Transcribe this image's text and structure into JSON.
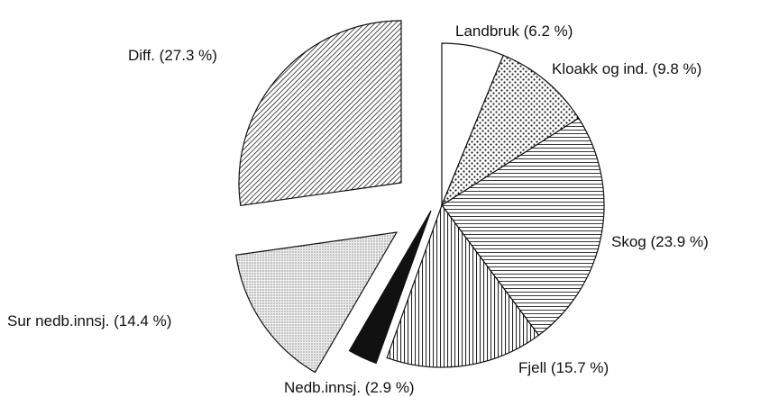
{
  "chart_data": {
    "type": "pie",
    "categories": [
      "Landbruk",
      "Kloakk og ind.",
      "Skog",
      "Fjell",
      "Nedb.innsj.",
      "Sur nedb.innsj.",
      "Diff."
    ],
    "values": [
      6.2,
      9.8,
      23.9,
      15.7,
      2.9,
      14.4,
      27.3
    ],
    "value_labels": [
      "(6.2 %)",
      "(9.8 %)",
      "(23.9 %)",
      "(15.7 %)",
      "(2.9 %)",
      "(14.4 %)",
      "(27.3 %)"
    ],
    "patterns": [
      "none",
      "dots",
      "horizontal",
      "vertical",
      "solid",
      "stipple",
      "diagonal"
    ]
  }
}
